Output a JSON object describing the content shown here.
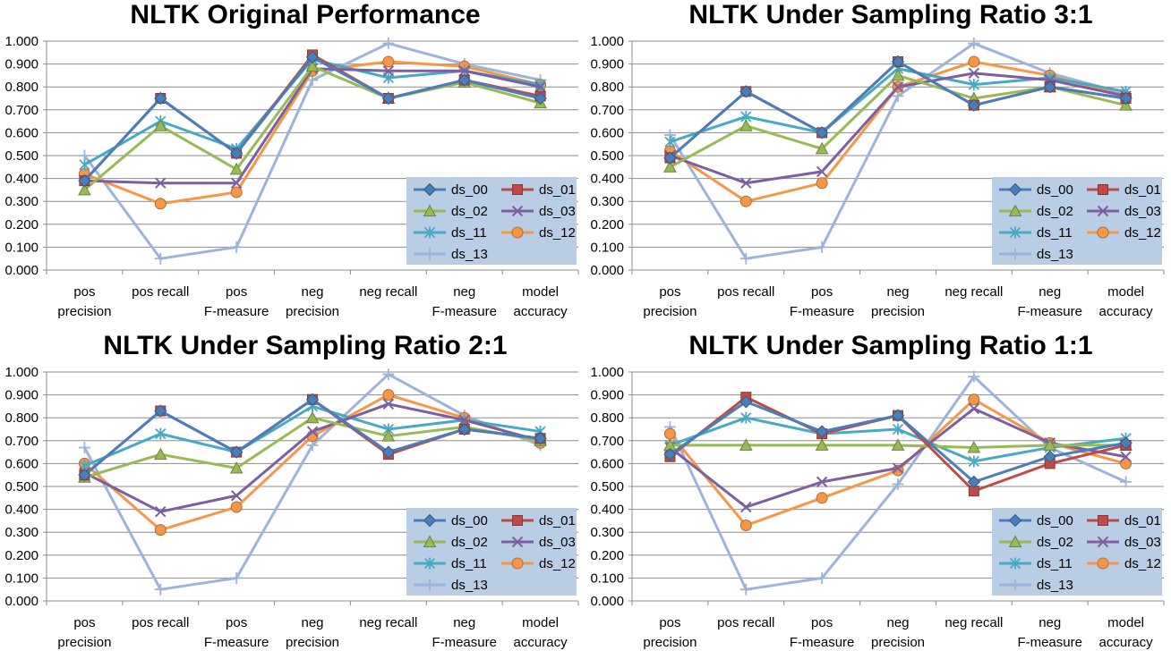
{
  "chart_data": [
    {
      "type": "line",
      "title": "NLTK Original Performance",
      "categories": [
        "pos precision",
        "pos recall",
        "pos F-measure",
        "neg precision",
        "neg recall",
        "neg F-measure",
        "model accuracy"
      ],
      "ylim": [
        0,
        1.0
      ],
      "yticks": [
        "0.000",
        "0.100",
        "0.200",
        "0.300",
        "0.400",
        "0.500",
        "0.600",
        "0.700",
        "0.800",
        "0.900",
        "1.000"
      ],
      "grid": true,
      "legend": "bottom-right",
      "series": [
        {
          "name": "ds_00",
          "color": "#4a7ebb",
          "marker": "diamond",
          "values": [
            0.39,
            0.75,
            0.51,
            0.93,
            0.75,
            0.83,
            0.75
          ]
        },
        {
          "name": "ds_01",
          "color": "#be4b48",
          "marker": "square",
          "values": [
            0.39,
            0.75,
            0.51,
            0.94,
            0.75,
            0.83,
            0.76
          ]
        },
        {
          "name": "ds_02",
          "color": "#98b954",
          "marker": "triangle",
          "values": [
            0.35,
            0.63,
            0.44,
            0.89,
            0.75,
            0.82,
            0.73
          ]
        },
        {
          "name": "ds_03",
          "color": "#7d5fa0",
          "marker": "x",
          "values": [
            0.39,
            0.38,
            0.38,
            0.88,
            0.87,
            0.87,
            0.8
          ]
        },
        {
          "name": "ds_11",
          "color": "#46aac5",
          "marker": "star",
          "values": [
            0.46,
            0.65,
            0.53,
            0.92,
            0.84,
            0.87,
            0.81
          ]
        },
        {
          "name": "ds_12",
          "color": "#f79646",
          "marker": "circle",
          "values": [
            0.42,
            0.29,
            0.34,
            0.87,
            0.91,
            0.89,
            0.81
          ]
        },
        {
          "name": "ds_13",
          "color": "#9db3da",
          "marker": "plus",
          "values": [
            0.5,
            0.05,
            0.1,
            0.83,
            0.99,
            0.9,
            0.83
          ]
        }
      ]
    },
    {
      "type": "line",
      "title": "NLTK Under Sampling Ratio 3:1",
      "categories": [
        "pos precision",
        "pos recall",
        "pos F-measure",
        "neg precision",
        "neg recall",
        "neg F-measure",
        "model accuracy"
      ],
      "ylim": [
        0,
        1.0
      ],
      "yticks": [
        "0.000",
        "0.100",
        "0.200",
        "0.300",
        "0.400",
        "0.500",
        "0.600",
        "0.700",
        "0.800",
        "0.900",
        "1.000"
      ],
      "grid": true,
      "legend": "bottom-right",
      "series": [
        {
          "name": "ds_00",
          "color": "#4a7ebb",
          "marker": "diamond",
          "values": [
            0.49,
            0.78,
            0.6,
            0.91,
            0.72,
            0.8,
            0.75
          ]
        },
        {
          "name": "ds_01",
          "color": "#be4b48",
          "marker": "square",
          "values": [
            0.49,
            0.78,
            0.6,
            0.91,
            0.72,
            0.8,
            0.75
          ]
        },
        {
          "name": "ds_02",
          "color": "#98b954",
          "marker": "triangle",
          "values": [
            0.45,
            0.63,
            0.53,
            0.85,
            0.75,
            0.8,
            0.72
          ]
        },
        {
          "name": "ds_03",
          "color": "#7d5fa0",
          "marker": "x",
          "values": [
            0.5,
            0.38,
            0.43,
            0.8,
            0.86,
            0.83,
            0.76
          ]
        },
        {
          "name": "ds_11",
          "color": "#46aac5",
          "marker": "star",
          "values": [
            0.56,
            0.67,
            0.6,
            0.88,
            0.81,
            0.84,
            0.78
          ]
        },
        {
          "name": "ds_12",
          "color": "#f79646",
          "marker": "circle",
          "values": [
            0.52,
            0.3,
            0.38,
            0.8,
            0.91,
            0.85,
            0.76
          ]
        },
        {
          "name": "ds_13",
          "color": "#9db3da",
          "marker": "plus",
          "values": [
            0.59,
            0.05,
            0.1,
            0.76,
            0.99,
            0.86,
            0.77
          ]
        }
      ]
    },
    {
      "type": "line",
      "title": "NLTK Under Sampling Ratio 2:1",
      "categories": [
        "pos precision",
        "pos recall",
        "pos F-measure",
        "neg precision",
        "neg recall",
        "neg F-measure",
        "model accuracy"
      ],
      "ylim": [
        0,
        1.0
      ],
      "yticks": [
        "0.000",
        "0.100",
        "0.200",
        "0.300",
        "0.400",
        "0.500",
        "0.600",
        "0.700",
        "0.800",
        "0.900",
        "1.000"
      ],
      "grid": true,
      "legend": "bottom-right",
      "series": [
        {
          "name": "ds_00",
          "color": "#4a7ebb",
          "marker": "diamond",
          "values": [
            0.55,
            0.83,
            0.65,
            0.88,
            0.65,
            0.75,
            0.71
          ]
        },
        {
          "name": "ds_01",
          "color": "#be4b48",
          "marker": "square",
          "values": [
            0.55,
            0.83,
            0.65,
            0.88,
            0.64,
            0.75,
            0.71
          ]
        },
        {
          "name": "ds_02",
          "color": "#98b954",
          "marker": "triangle",
          "values": [
            0.54,
            0.64,
            0.58,
            0.8,
            0.72,
            0.76,
            0.7
          ]
        },
        {
          "name": "ds_03",
          "color": "#7d5fa0",
          "marker": "x",
          "values": [
            0.56,
            0.39,
            0.46,
            0.74,
            0.86,
            0.79,
            0.7
          ]
        },
        {
          "name": "ds_11",
          "color": "#46aac5",
          "marker": "star",
          "values": [
            0.59,
            0.73,
            0.65,
            0.85,
            0.75,
            0.79,
            0.74
          ]
        },
        {
          "name": "ds_12",
          "color": "#f79646",
          "marker": "circle",
          "values": [
            0.6,
            0.31,
            0.41,
            0.72,
            0.9,
            0.8,
            0.69
          ]
        },
        {
          "name": "ds_13",
          "color": "#9db3da",
          "marker": "plus",
          "values": [
            0.67,
            0.05,
            0.1,
            0.68,
            0.99,
            0.81,
            0.68
          ]
        }
      ]
    },
    {
      "type": "line",
      "title": "NLTK Under Sampling Ratio 1:1",
      "categories": [
        "pos precision",
        "pos recall",
        "pos F-measure",
        "neg precision",
        "neg recall",
        "neg F-measure",
        "model accuracy"
      ],
      "ylim": [
        0,
        1.0
      ],
      "yticks": [
        "0.000",
        "0.100",
        "0.200",
        "0.300",
        "0.400",
        "0.500",
        "0.600",
        "0.700",
        "0.800",
        "0.900",
        "1.000"
      ],
      "grid": true,
      "legend": "bottom-right",
      "series": [
        {
          "name": "ds_00",
          "color": "#4a7ebb",
          "marker": "diamond",
          "values": [
            0.64,
            0.87,
            0.74,
            0.81,
            0.52,
            0.63,
            0.69
          ]
        },
        {
          "name": "ds_01",
          "color": "#be4b48",
          "marker": "square",
          "values": [
            0.63,
            0.89,
            0.73,
            0.81,
            0.48,
            0.6,
            0.68
          ]
        },
        {
          "name": "ds_02",
          "color": "#98b954",
          "marker": "triangle",
          "values": [
            0.68,
            0.68,
            0.68,
            0.68,
            0.67,
            0.68,
            0.68
          ]
        },
        {
          "name": "ds_03",
          "color": "#7d5fa0",
          "marker": "x",
          "values": [
            0.67,
            0.41,
            0.52,
            0.58,
            0.84,
            0.69,
            0.63
          ]
        },
        {
          "name": "ds_11",
          "color": "#46aac5",
          "marker": "star",
          "values": [
            0.68,
            0.8,
            0.73,
            0.75,
            0.61,
            0.67,
            0.71
          ]
        },
        {
          "name": "ds_12",
          "color": "#f79646",
          "marker": "circle",
          "values": [
            0.73,
            0.33,
            0.45,
            0.57,
            0.88,
            0.69,
            0.6
          ]
        },
        {
          "name": "ds_13",
          "color": "#9db3da",
          "marker": "plus",
          "values": [
            0.76,
            0.05,
            0.1,
            0.51,
            0.98,
            0.67,
            0.52
          ]
        }
      ]
    }
  ]
}
